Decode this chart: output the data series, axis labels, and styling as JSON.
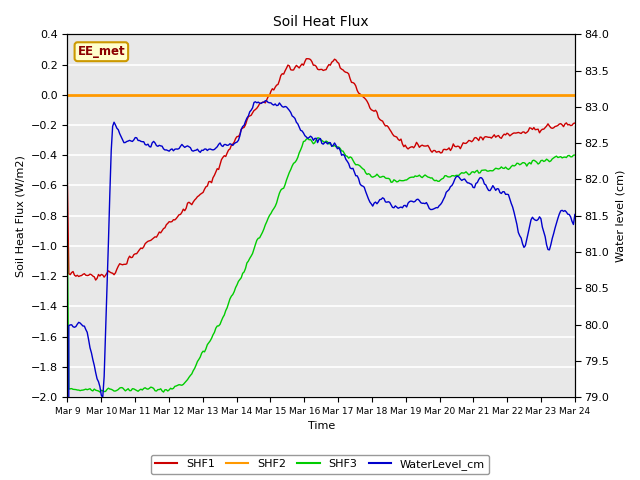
{
  "title": "Soil Heat Flux",
  "ylabel_left": "Soil Heat Flux (W/m2)",
  "ylabel_right": "Water level (cm)",
  "xlabel": "Time",
  "annotation": "EE_met",
  "ylim_left": [
    -2.0,
    0.4
  ],
  "ylim_right": [
    79.0,
    84.0
  ],
  "x_ticks": [
    "Mar 9",
    "Mar 10",
    "Mar 11",
    "Mar 12",
    "Mar 13",
    "Mar 14",
    "Mar 15",
    "Mar 16",
    "Mar 17",
    "Mar 18",
    "Mar 19",
    "Mar 20",
    "Mar 21",
    "Mar 22",
    "Mar 23",
    "Mar 24"
  ],
  "background_color": "#e8e8e8",
  "grid_color": "#ffffff",
  "shf1_color": "#cc0000",
  "shf2_color": "#ff9900",
  "shf3_color": "#00cc00",
  "wl_color": "#0000cc",
  "legend_labels": [
    "SHF1",
    "SHF2",
    "SHF3",
    "WaterLevel_cm"
  ],
  "yticks_left": [
    -2.0,
    -1.8,
    -1.6,
    -1.4,
    -1.2,
    -1.0,
    -0.8,
    -0.6,
    -0.4,
    -0.2,
    0.0,
    0.2,
    0.4
  ],
  "yticks_right": [
    79.0,
    79.5,
    80.0,
    80.5,
    81.0,
    81.5,
    82.0,
    82.5,
    83.0,
    83.5,
    84.0
  ]
}
